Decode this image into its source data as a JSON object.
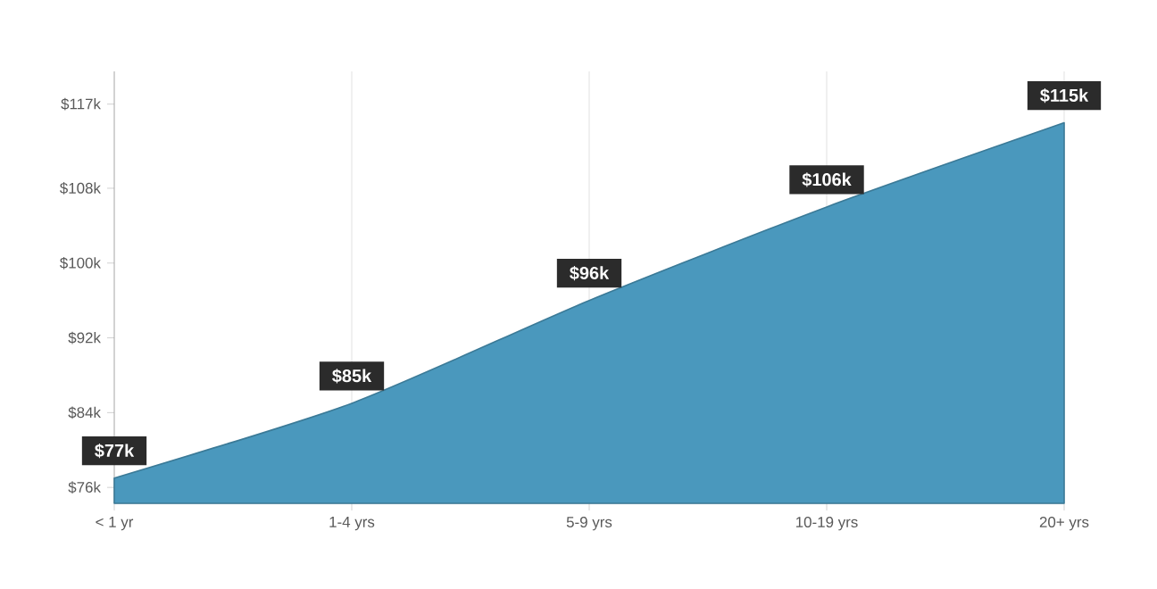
{
  "chart_data": {
    "type": "area",
    "categories": [
      "< 1 yr",
      "1-4 yrs",
      "5-9 yrs",
      "10-19 yrs",
      "20+ yrs"
    ],
    "series": [
      {
        "color": "#4a98bd",
        "values": [
          77,
          85,
          96,
          106,
          115
        ],
        "value_labels": [
          "$77k",
          "$85k",
          "$96k",
          "$106k",
          "$115k"
        ]
      }
    ],
    "ylim": [
      74.3,
      120.5
    ],
    "yticks": [
      {
        "value": 76,
        "label": "$76k"
      },
      {
        "value": 84,
        "label": "$84k"
      },
      {
        "value": 92,
        "label": "$92k"
      },
      {
        "value": 100,
        "label": "$100k"
      },
      {
        "value": 108,
        "label": "$108k"
      },
      {
        "value": 117,
        "label": "$117k"
      }
    ],
    "grid": "x"
  }
}
